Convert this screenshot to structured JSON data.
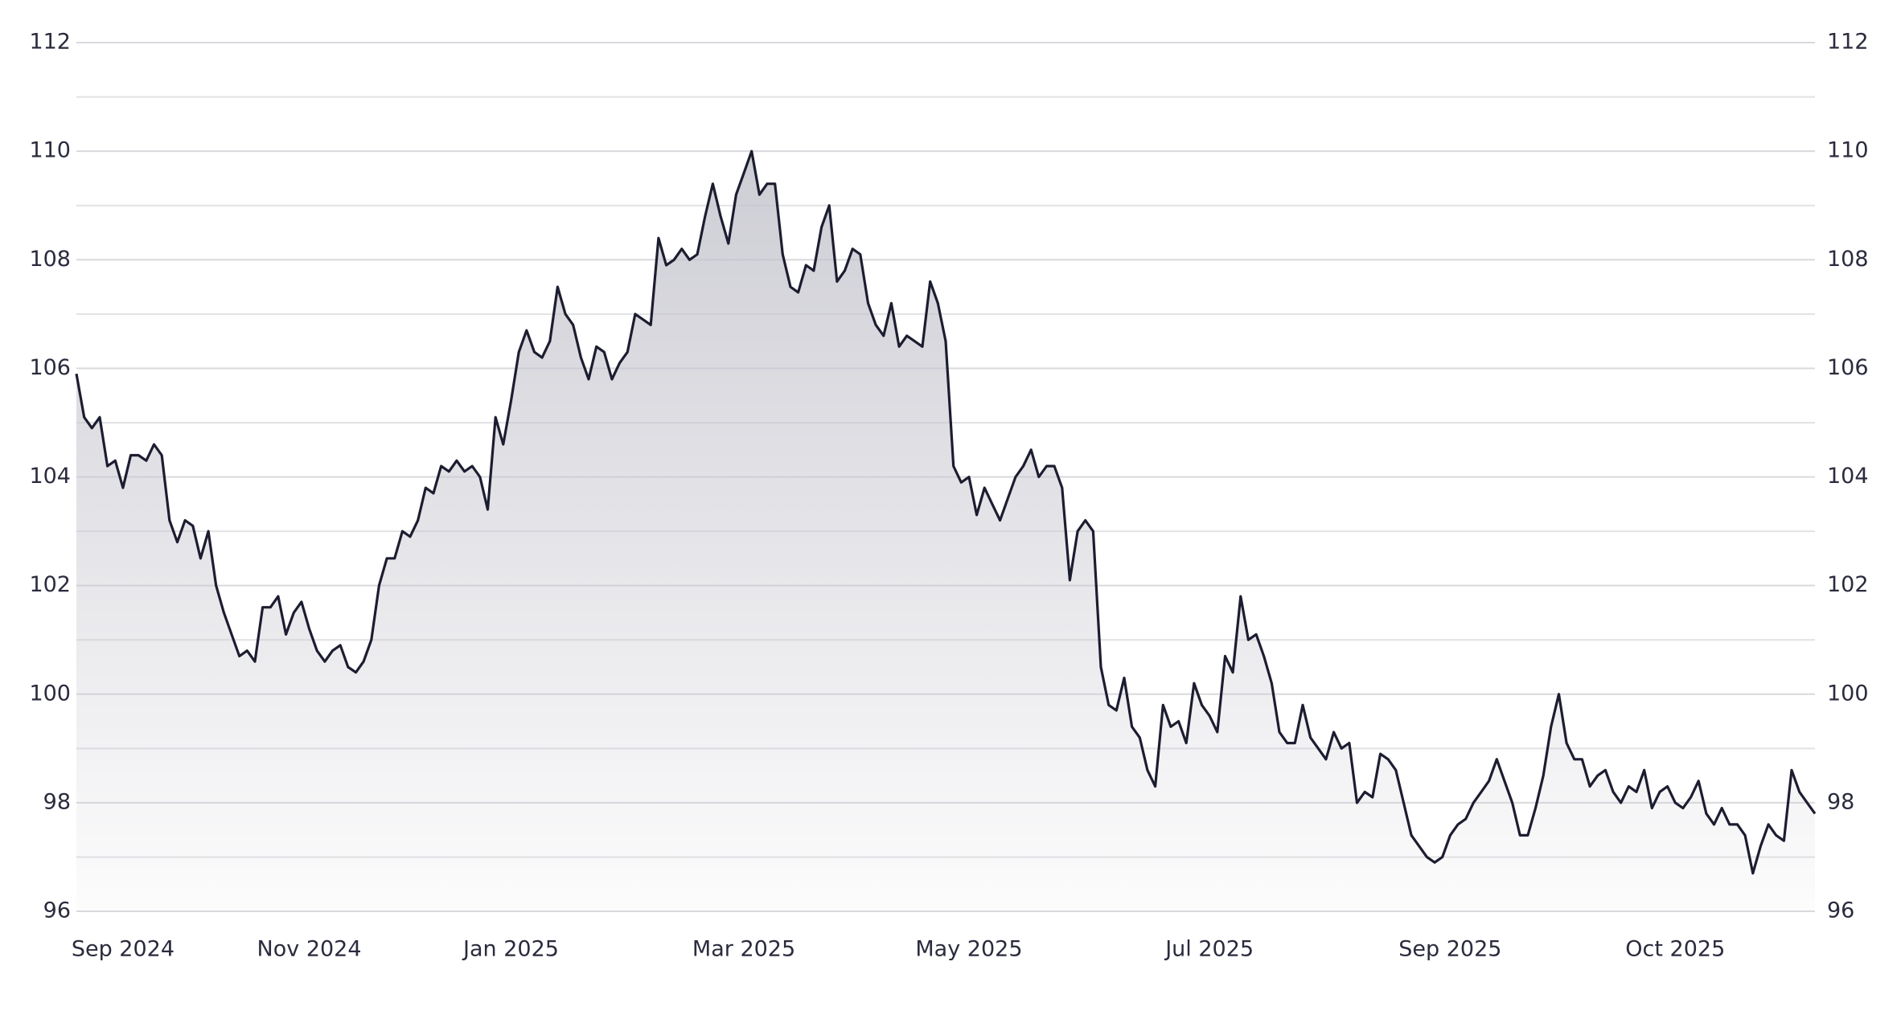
{
  "chart_data": {
    "type": "area",
    "categories": [
      null,
      null,
      null,
      null,
      null,
      null,
      "Sep 2024",
      null,
      null,
      null,
      null,
      null,
      null,
      null,
      null,
      null,
      null,
      null,
      null,
      null,
      null,
      null,
      null,
      null,
      null,
      null,
      null,
      null,
      null,
      null,
      "Nov 2024",
      null,
      null,
      null,
      null,
      null,
      null,
      null,
      null,
      null,
      null,
      null,
      null,
      null,
      null,
      null,
      null,
      null,
      null,
      null,
      null,
      null,
      null,
      null,
      null,
      null,
      "Jan 2025",
      null,
      null,
      null,
      null,
      null,
      null,
      null,
      null,
      null,
      null,
      null,
      null,
      null,
      null,
      null,
      null,
      null,
      null,
      null,
      null,
      null,
      null,
      null,
      null,
      null,
      null,
      null,
      null,
      null,
      "Mar 2025",
      null,
      null,
      null,
      null,
      null,
      null,
      null,
      null,
      null,
      null,
      null,
      null,
      null,
      null,
      null,
      null,
      null,
      null,
      null,
      null,
      null,
      null,
      null,
      null,
      null,
      null,
      null,
      null,
      "May 2025",
      null,
      null,
      null,
      null,
      null,
      null,
      null,
      null,
      null,
      null,
      null,
      null,
      null,
      null,
      null,
      null,
      null,
      null,
      null,
      null,
      null,
      null,
      null,
      null,
      null,
      null,
      null,
      null,
      null,
      null,
      "Jul 2025",
      null,
      null,
      null,
      null,
      null,
      null,
      null,
      null,
      null,
      null,
      null,
      null,
      null,
      null,
      null,
      null,
      null,
      null,
      null,
      null,
      null,
      null,
      null,
      null,
      null,
      null,
      null,
      null,
      null,
      null,
      "Sep 2025",
      null,
      null,
      null,
      null,
      null,
      null,
      null,
      null,
      null,
      null,
      null,
      null,
      null,
      null,
      null,
      null,
      null,
      null,
      null,
      null,
      null,
      null,
      null,
      null,
      null,
      null,
      null,
      null,
      "Oct 2025",
      null,
      null,
      null,
      null,
      null,
      null,
      null,
      null,
      null,
      null,
      null,
      null,
      null,
      null,
      null,
      null,
      null,
      null
    ],
    "values": [
      105.9,
      105.1,
      104.9,
      105.1,
      104.2,
      104.3,
      103.8,
      104.4,
      104.4,
      104.3,
      104.6,
      104.4,
      103.2,
      102.8,
      103.2,
      103.1,
      102.5,
      103.0,
      102.0,
      101.5,
      101.1,
      100.7,
      100.8,
      100.6,
      101.6,
      101.6,
      101.8,
      101.1,
      101.5,
      101.7,
      101.2,
      100.8,
      100.6,
      100.8,
      100.9,
      100.5,
      100.4,
      100.6,
      101.0,
      102.0,
      102.5,
      102.5,
      103.0,
      102.9,
      103.2,
      103.8,
      103.7,
      104.2,
      104.1,
      104.3,
      104.1,
      104.2,
      104.0,
      103.4,
      105.1,
      104.6,
      105.4,
      106.3,
      106.7,
      106.3,
      106.2,
      106.5,
      107.5,
      107.0,
      106.8,
      106.2,
      105.8,
      106.4,
      106.3,
      105.8,
      106.1,
      106.3,
      107.0,
      106.9,
      106.8,
      108.4,
      107.9,
      108.0,
      108.2,
      108.0,
      108.1,
      108.8,
      109.4,
      108.8,
      108.3,
      109.2,
      109.6,
      110.0,
      109.2,
      109.4,
      109.4,
      108.1,
      107.5,
      107.4,
      107.9,
      107.8,
      108.6,
      109.0,
      107.6,
      107.8,
      108.2,
      108.1,
      107.2,
      106.8,
      106.6,
      107.2,
      106.4,
      106.6,
      106.5,
      106.4,
      107.6,
      107.2,
      106.5,
      104.2,
      103.9,
      104.0,
      103.3,
      103.8,
      103.5,
      103.2,
      103.6,
      104.0,
      104.2,
      104.5,
      104.0,
      104.2,
      104.2,
      103.8,
      102.1,
      103.0,
      103.2,
      103.0,
      100.5,
      99.8,
      99.7,
      100.3,
      99.4,
      99.2,
      98.6,
      98.3,
      99.8,
      99.4,
      99.5,
      99.1,
      100.2,
      99.8,
      99.6,
      99.3,
      100.7,
      100.4,
      101.8,
      101.0,
      101.1,
      100.7,
      100.2,
      99.3,
      99.1,
      99.1,
      99.8,
      99.2,
      99.0,
      98.8,
      99.3,
      99.0,
      99.1,
      98.0,
      98.2,
      98.1,
      98.9,
      98.8,
      98.6,
      98.0,
      97.4,
      97.2,
      97.0,
      96.9,
      97.0,
      97.4,
      97.6,
      97.7,
      98.0,
      98.2,
      98.4,
      98.8,
      98.4,
      98.0,
      97.4,
      97.4,
      97.9,
      98.5,
      99.4,
      100.0,
      99.1,
      98.8,
      98.8,
      98.3,
      98.5,
      98.6,
      98.2,
      98.0,
      98.3,
      98.2,
      98.6,
      97.9,
      98.2,
      98.3,
      98.0,
      97.9,
      98.1,
      98.4,
      97.8,
      97.6,
      97.9,
      97.6,
      97.6,
      97.4,
      96.7,
      97.2,
      97.6,
      97.4,
      97.3,
      98.6,
      98.2,
      98.0,
      97.8
    ],
    "color": "#1c1d30",
    "fill_color": "#c4c4cd",
    "ylim": [
      96,
      112
    ],
    "yticks": [
      96,
      98,
      100,
      102,
      104,
      106,
      108,
      110,
      112
    ],
    "minor_yticks": [
      97,
      99,
      101,
      103,
      105,
      107,
      109,
      111
    ],
    "grid": true,
    "y_labels_both_sides": true
  }
}
